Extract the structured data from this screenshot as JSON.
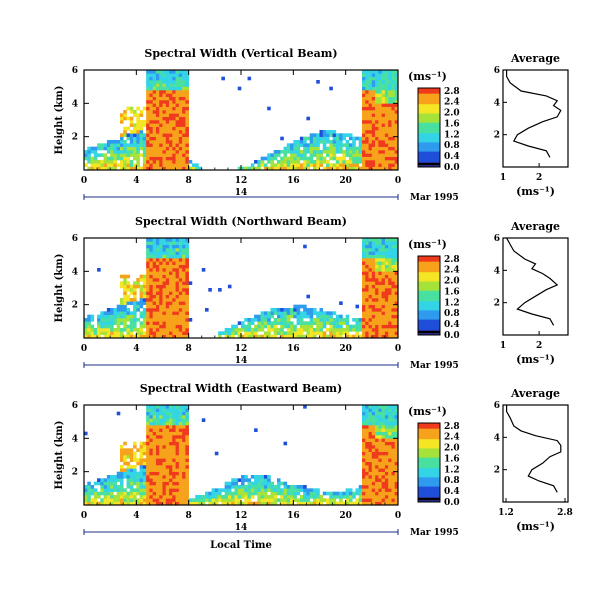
{
  "chart_data": [
    {
      "type": "heatmap",
      "title": "Spectral Width (Vertical Beam)",
      "xlabel": "",
      "ylabel": "Height (km)",
      "x_ticks": [
        "0",
        "4",
        "8",
        "12",
        "16",
        "20",
        "0"
      ],
      "y_ticks": [
        "2",
        "4",
        "6"
      ],
      "date_label": "14",
      "date_suffix": "Mar 1995",
      "colorbar": {
        "unit": "(ms⁻¹)",
        "ticks": [
          "0.0",
          "0.4",
          "0.8",
          "1.2",
          "1.6",
          "2.0",
          "2.4",
          "2.8"
        ]
      },
      "average": {
        "title": "Average",
        "xlabel": "(ms⁻¹)",
        "x_ticks": [
          "1",
          "2"
        ],
        "y_ticks": [
          "2",
          "4",
          "6"
        ],
        "profile": [
          {
            "height": 0.6,
            "width": 2.3
          },
          {
            "height": 1.0,
            "width": 2.2
          },
          {
            "height": 1.3,
            "width": 1.7
          },
          {
            "height": 1.6,
            "width": 1.3
          },
          {
            "height": 2.0,
            "width": 1.4
          },
          {
            "height": 2.4,
            "width": 1.7
          },
          {
            "height": 2.8,
            "width": 2.1
          },
          {
            "height": 3.1,
            "width": 2.5
          },
          {
            "height": 3.5,
            "width": 2.6
          },
          {
            "height": 3.8,
            "width": 2.4
          },
          {
            "height": 4.1,
            "width": 2.5
          },
          {
            "height": 4.4,
            "width": 2.2
          },
          {
            "height": 4.7,
            "width": 1.5
          },
          {
            "height": 5.2,
            "width": 1.2
          },
          {
            "height": 5.6,
            "width": 1.1
          },
          {
            "height": 6.0,
            "width": 1.1
          }
        ]
      }
    },
    {
      "type": "heatmap",
      "title": "Spectral Width (Northward Beam)",
      "xlabel": "",
      "ylabel": "Height (km)",
      "x_ticks": [
        "0",
        "4",
        "8",
        "12",
        "16",
        "20",
        "0"
      ],
      "y_ticks": [
        "2",
        "4",
        "6"
      ],
      "date_label": "14",
      "date_suffix": "Mar 1995",
      "colorbar": {
        "unit": "(ms⁻¹)",
        "ticks": [
          "0.0",
          "0.4",
          "0.8",
          "1.2",
          "1.6",
          "2.0",
          "2.4",
          "2.8"
        ]
      },
      "average": {
        "title": "Average",
        "xlabel": "(ms⁻¹)",
        "x_ticks": [
          "1",
          "2"
        ],
        "y_ticks": [
          "2",
          "4",
          "6"
        ],
        "profile": [
          {
            "height": 0.6,
            "width": 2.4
          },
          {
            "height": 1.0,
            "width": 2.3
          },
          {
            "height": 1.3,
            "width": 1.8
          },
          {
            "height": 1.6,
            "width": 1.4
          },
          {
            "height": 2.0,
            "width": 1.6
          },
          {
            "height": 2.4,
            "width": 1.9
          },
          {
            "height": 2.8,
            "width": 2.2
          },
          {
            "height": 3.1,
            "width": 2.5
          },
          {
            "height": 3.5,
            "width": 2.3
          },
          {
            "height": 3.8,
            "width": 2.1
          },
          {
            "height": 4.1,
            "width": 1.8
          },
          {
            "height": 4.4,
            "width": 1.9
          },
          {
            "height": 4.7,
            "width": 1.6
          },
          {
            "height": 5.2,
            "width": 1.3
          },
          {
            "height": 5.6,
            "width": 1.2
          },
          {
            "height": 6.0,
            "width": 1.1
          }
        ]
      }
    },
    {
      "type": "heatmap",
      "title": "Spectral Width (Eastward Beam)",
      "xlabel": "Local Time",
      "ylabel": "Height (km)",
      "x_ticks": [
        "0",
        "4",
        "8",
        "12",
        "16",
        "20",
        "0"
      ],
      "y_ticks": [
        "2",
        "4",
        "6"
      ],
      "date_label": "14",
      "date_suffix": "Mar 1995",
      "colorbar": {
        "unit": "(ms⁻¹)",
        "ticks": [
          "0.0",
          "0.4",
          "0.8",
          "1.2",
          "1.6",
          "2.0",
          "2.4",
          "2.8"
        ]
      },
      "average": {
        "title": "Average",
        "xlabel": "(ms⁻¹)",
        "x_ticks": [
          "1.2",
          "2.8"
        ],
        "y_ticks": [
          "2",
          "4",
          "6"
        ],
        "profile": [
          {
            "height": 0.6,
            "width": 2.5
          },
          {
            "height": 1.0,
            "width": 2.4
          },
          {
            "height": 1.3,
            "width": 2.0
          },
          {
            "height": 1.6,
            "width": 1.7
          },
          {
            "height": 2.0,
            "width": 1.8
          },
          {
            "height": 2.4,
            "width": 2.1
          },
          {
            "height": 2.8,
            "width": 2.3
          },
          {
            "height": 3.1,
            "width": 2.6
          },
          {
            "height": 3.5,
            "width": 2.6
          },
          {
            "height": 3.8,
            "width": 2.5
          },
          {
            "height": 4.1,
            "width": 1.9
          },
          {
            "height": 4.4,
            "width": 1.5
          },
          {
            "height": 4.7,
            "width": 1.3
          },
          {
            "height": 5.2,
            "width": 1.2
          },
          {
            "height": 5.6,
            "width": 1.1
          },
          {
            "height": 6.0,
            "width": 1.1
          }
        ]
      }
    }
  ],
  "colors": {
    "colormap": [
      "#2a2a88",
      "#1f4ed8",
      "#2e9bef",
      "#33d4e6",
      "#49e0a0",
      "#a6e33a",
      "#f4e625",
      "#f7a21b",
      "#ef3a1d"
    ],
    "axis": "#000000",
    "date_line": "#1e2d8a"
  }
}
